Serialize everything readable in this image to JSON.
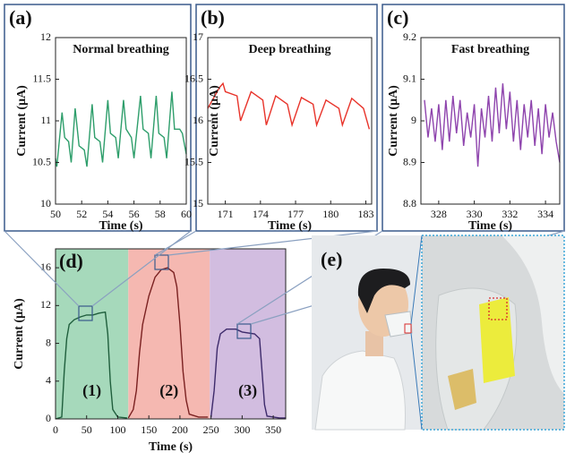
{
  "chart_data": [
    {
      "type": "line",
      "label": "(a)",
      "title": "Normal breathing",
      "x_label": "Time (s)",
      "y_label": "Current (μA)",
      "xlim": [
        50,
        60
      ],
      "ylim": [
        10,
        12
      ],
      "xticks": [
        50,
        52,
        54,
        56,
        58,
        60
      ],
      "yticks": [
        10,
        10.5,
        11,
        11.5,
        12
      ],
      "series": [
        {
          "color": "#2e9e6b",
          "x": [
            50.0,
            50.1,
            50.5,
            50.7,
            51.0,
            51.2,
            51.5,
            51.8,
            52.2,
            52.4,
            52.8,
            53.0,
            53.4,
            53.6,
            54.0,
            54.2,
            54.6,
            54.8,
            55.2,
            55.4,
            55.8,
            56.0,
            56.5,
            56.7,
            57.1,
            57.3,
            57.7,
            57.9,
            58.3,
            58.5,
            58.9,
            59.1,
            59.5,
            59.7,
            60.0
          ],
          "values": [
            10.55,
            10.45,
            11.1,
            10.8,
            10.75,
            10.5,
            11.15,
            10.7,
            10.65,
            10.45,
            11.2,
            10.8,
            10.75,
            10.5,
            11.25,
            10.85,
            10.8,
            10.55,
            11.25,
            10.9,
            10.8,
            10.55,
            11.3,
            10.9,
            10.85,
            10.55,
            11.3,
            10.85,
            10.8,
            10.55,
            11.35,
            10.9,
            10.9,
            10.85,
            10.6
          ]
        }
      ]
    },
    {
      "type": "line",
      "label": "(b)",
      "title": "Deep breathing",
      "x_label": "Time (s)",
      "y_label": "Current (μA)",
      "xlim": [
        169.5,
        183.5
      ],
      "ylim": [
        15,
        17
      ],
      "xticks": [
        171,
        174,
        177,
        180,
        183
      ],
      "yticks": [
        15,
        15.5,
        16,
        16.5,
        17
      ],
      "series": [
        {
          "color": "#e8332a",
          "x": [
            169.5,
            170.5,
            170.8,
            171.0,
            172.0,
            172.3,
            173.2,
            174.2,
            174.5,
            175.3,
            176.3,
            176.7,
            177.5,
            178.5,
            178.8,
            179.6,
            180.7,
            181.0,
            181.8,
            182.8,
            183.3
          ],
          "values": [
            16.15,
            16.4,
            16.45,
            16.35,
            16.3,
            16.0,
            16.35,
            16.25,
            15.95,
            16.3,
            16.2,
            15.95,
            16.28,
            16.2,
            15.95,
            16.25,
            16.15,
            15.95,
            16.27,
            16.15,
            15.9
          ]
        }
      ]
    },
    {
      "type": "line",
      "label": "(c)",
      "title": "Fast breathing",
      "x_label": "Time (s)",
      "y_label": "Current (μA)",
      "xlim": [
        327,
        334.8
      ],
      "ylim": [
        8.8,
        9.2
      ],
      "xticks": [
        328,
        330,
        332,
        334
      ],
      "yticks": [
        8.8,
        8.9,
        9,
        9.1,
        9.2
      ],
      "series": [
        {
          "color": "#8e44ad",
          "x": [
            327.2,
            327.4,
            327.6,
            327.8,
            328.0,
            328.2,
            328.4,
            328.6,
            328.8,
            329.0,
            329.2,
            329.4,
            329.6,
            329.8,
            330.0,
            330.2,
            330.4,
            330.6,
            330.8,
            331.0,
            331.2,
            331.4,
            331.6,
            331.8,
            332.0,
            332.2,
            332.4,
            332.6,
            332.8,
            333.0,
            333.2,
            333.4,
            333.6,
            333.8,
            334.0,
            334.2,
            334.4,
            334.6,
            334.8
          ],
          "values": [
            9.05,
            8.96,
            9.03,
            8.95,
            9.04,
            8.93,
            9.05,
            8.95,
            9.06,
            8.97,
            9.05,
            8.94,
            9.02,
            8.96,
            9.04,
            8.89,
            9.03,
            8.96,
            9.06,
            8.95,
            9.08,
            8.97,
            9.09,
            8.98,
            9.07,
            8.95,
            9.05,
            8.93,
            9.04,
            8.96,
            9.05,
            8.94,
            9.03,
            8.92,
            9.04,
            8.96,
            9.02,
            8.95,
            8.9
          ]
        }
      ]
    },
    {
      "type": "line",
      "label": "(d)",
      "x_label": "Time (s)",
      "y_label": "Current (μA)",
      "xlim": [
        0,
        370
      ],
      "ylim": [
        0,
        18
      ],
      "xticks": [
        0,
        50,
        100,
        150,
        200,
        250,
        300,
        350
      ],
      "yticks": [
        0,
        4,
        8,
        12,
        16
      ],
      "regions": [
        {
          "label": "(1)",
          "from": 0,
          "to": 117,
          "color": "#a6d9bb"
        },
        {
          "label": "(2)",
          "from": 117,
          "to": 248,
          "color": "#f5b8b1"
        },
        {
          "label": "(3)",
          "from": 248,
          "to": 370,
          "color": "#d2bde0"
        }
      ],
      "series": [
        {
          "color": "#1f5e3c",
          "x": [
            0,
            10,
            14,
            18,
            22,
            30,
            40,
            50,
            60,
            70,
            80,
            84,
            88,
            92,
            100,
            115
          ],
          "values": [
            0,
            0.2,
            5,
            8.5,
            10,
            10.5,
            10.8,
            11,
            11,
            11.2,
            11.3,
            9,
            4,
            1,
            0.2,
            0.1
          ]
        },
        {
          "color": "#7a2020",
          "x": [
            117,
            125,
            130,
            135,
            140,
            150,
            160,
            170,
            180,
            190,
            195,
            200,
            205,
            210,
            215,
            230,
            245
          ],
          "values": [
            0.1,
            1,
            3,
            7,
            10,
            13,
            15,
            15.8,
            16,
            15.5,
            14,
            10,
            5,
            2,
            0.5,
            0.2,
            0.2
          ]
        },
        {
          "color": "#3d2a6b",
          "x": [
            250,
            255,
            260,
            265,
            275,
            290,
            300,
            320,
            328,
            332,
            336,
            340,
            360,
            370
          ],
          "values": [
            0.2,
            3,
            7.5,
            9,
            9.5,
            9.5,
            9.2,
            9,
            8.5,
            5,
            1.5,
            0.3,
            0.1,
            0.1
          ]
        }
      ]
    }
  ],
  "photo_label": "(e)"
}
